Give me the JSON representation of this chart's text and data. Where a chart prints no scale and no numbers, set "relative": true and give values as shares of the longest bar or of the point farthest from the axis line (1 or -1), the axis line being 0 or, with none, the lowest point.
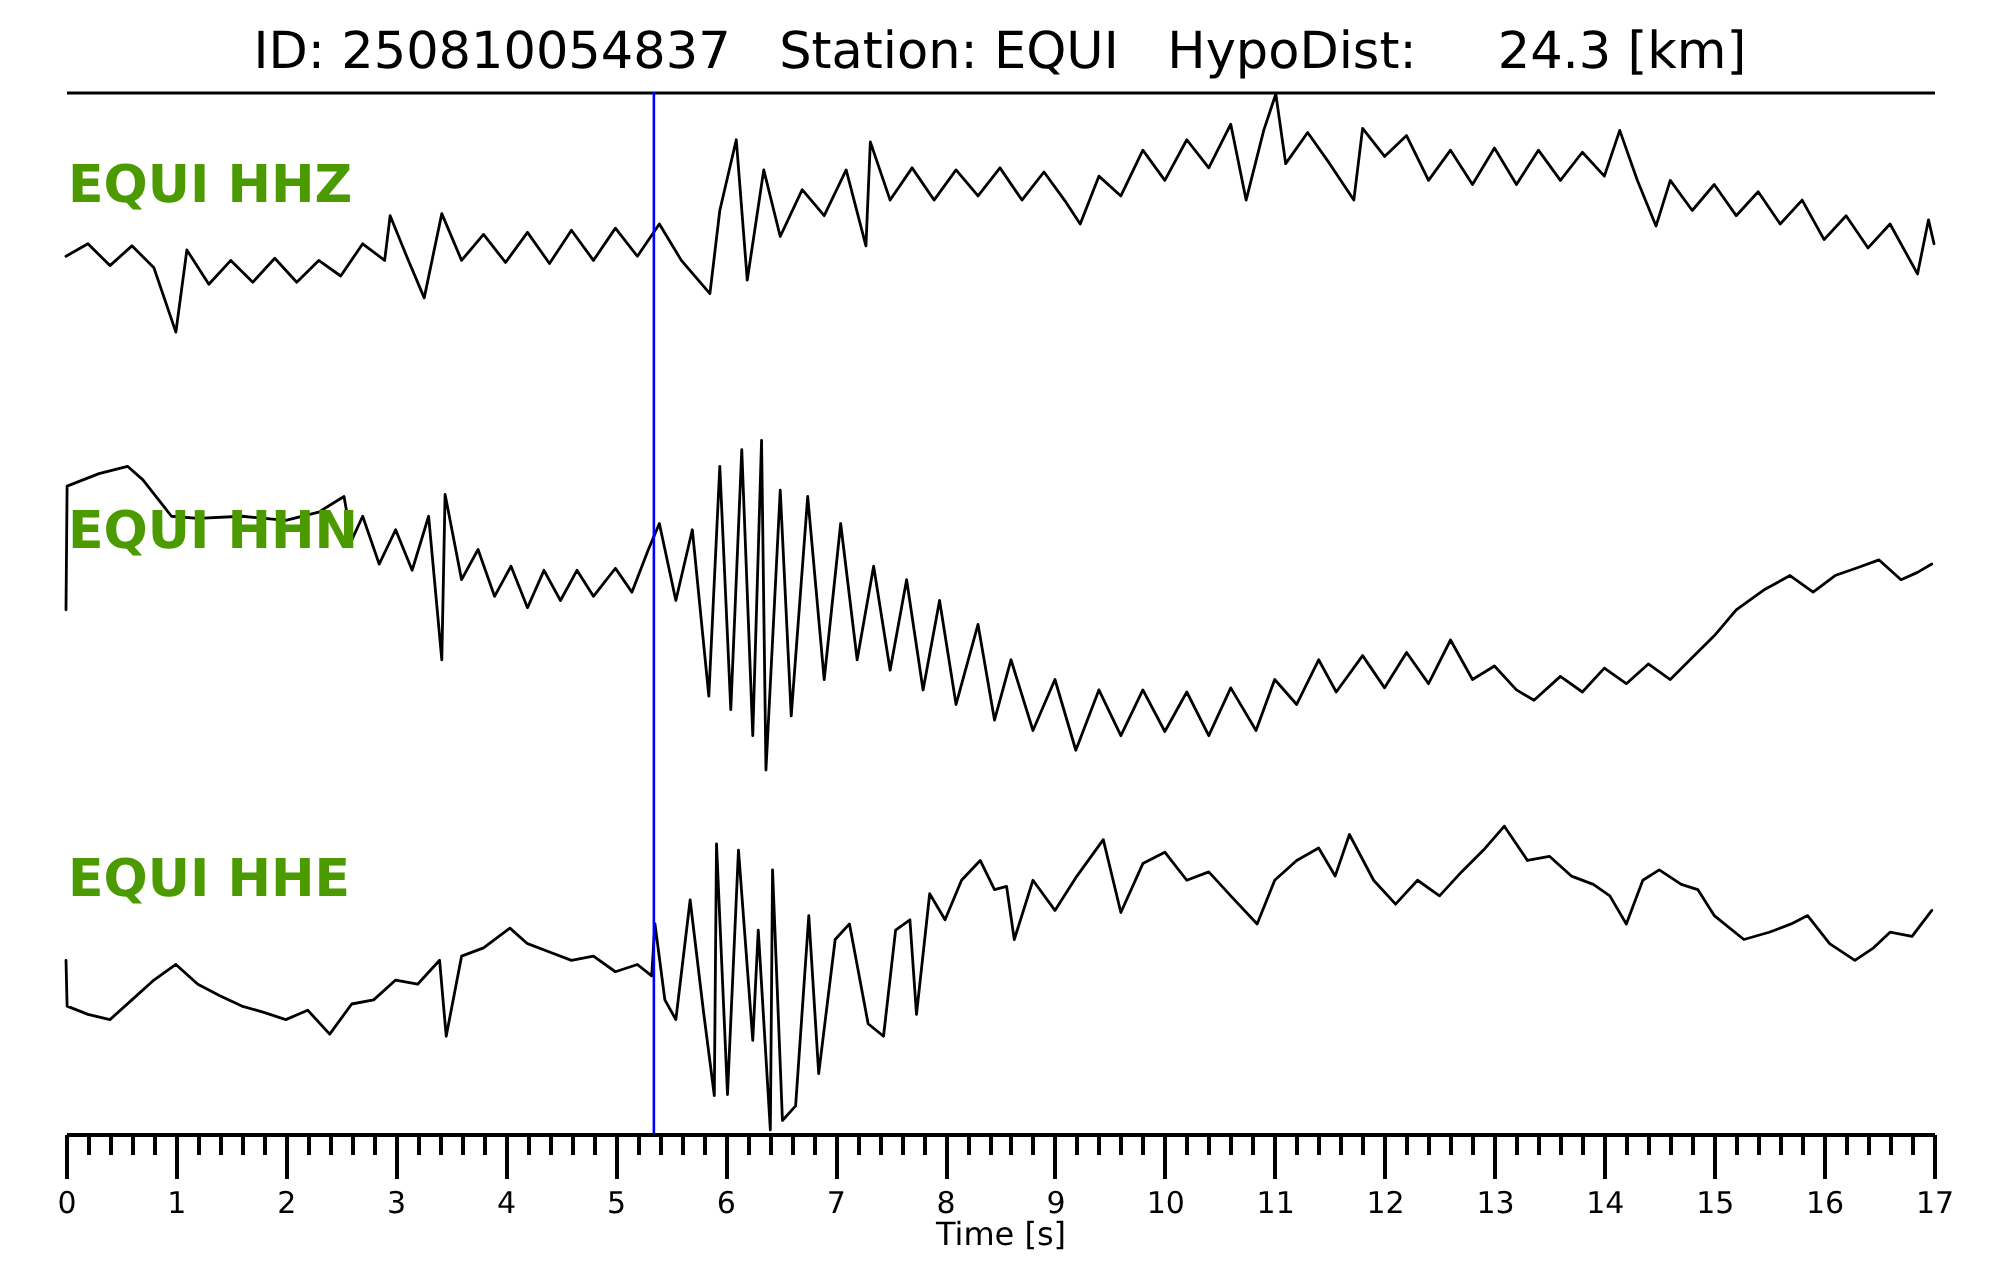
{
  "chart_data": {
    "type": "line",
    "relative": true,
    "title": "ID: 250810054837   Station: EQUI   HypoDist:     24.3 [km]",
    "xlabel": "Time [s]",
    "xlim": [
      0,
      17
    ],
    "xticks": [
      0,
      {
        "value": 0.2,
        "label": null
      },
      {
        "value": 0.4,
        "label": null
      },
      {
        "value": 0.6,
        "label": null
      },
      {
        "value": 0.8,
        "label": null
      },
      1,
      {
        "value": 1.2,
        "label": null
      },
      {
        "value": 1.4,
        "label": null
      },
      {
        "value": 1.6,
        "label": null
      },
      {
        "value": 1.8,
        "label": null
      },
      2,
      {
        "value": 2.2,
        "label": null
      },
      {
        "value": 2.4,
        "label": null
      },
      {
        "value": 2.6,
        "label": null
      },
      {
        "value": 2.8,
        "label": null
      },
      3,
      {
        "value": 3.2,
        "label": null
      },
      {
        "value": 3.4,
        "label": null
      },
      {
        "value": 3.6,
        "label": null
      },
      {
        "value": 3.8,
        "label": null
      },
      4,
      {
        "value": 4.2,
        "label": null
      },
      {
        "value": 4.4,
        "label": null
      },
      {
        "value": 4.6,
        "label": null
      },
      {
        "value": 4.8,
        "label": null
      },
      5,
      {
        "value": 5.2,
        "label": null
      },
      {
        "value": 5.4,
        "label": null
      },
      {
        "value": 5.6,
        "label": null
      },
      {
        "value": 5.8,
        "label": null
      },
      6,
      {
        "value": 6.2,
        "label": null
      },
      {
        "value": 6.4,
        "label": null
      },
      {
        "value": 6.6,
        "label": null
      },
      {
        "value": 6.8,
        "label": null
      },
      7,
      {
        "value": 7.2,
        "label": null
      },
      {
        "value": 7.4,
        "label": null
      },
      {
        "value": 7.6,
        "label": null
      },
      {
        "value": 7.8,
        "label": null
      },
      8,
      {
        "value": 8.2,
        "label": null
      },
      {
        "value": 8.4,
        "label": null
      },
      {
        "value": 8.6,
        "label": null
      },
      {
        "value": 8.8,
        "label": null
      },
      9,
      {
        "value": 9.2,
        "label": null
      },
      {
        "value": 9.4,
        "label": null
      },
      {
        "value": 9.6,
        "label": null
      },
      {
        "value": 9.8,
        "label": null
      },
      10,
      {
        "value": 10.2,
        "label": null
      },
      {
        "value": 10.4,
        "label": null
      },
      {
        "value": 10.6,
        "label": null
      },
      {
        "value": 10.8,
        "label": null
      },
      11,
      {
        "value": 11.2,
        "label": null
      },
      {
        "value": 11.4,
        "label": null
      },
      {
        "value": 11.6,
        "label": null
      },
      {
        "value": 11.8,
        "label": null
      },
      12,
      {
        "value": 12.2,
        "label": null
      },
      {
        "value": 12.4,
        "label": null
      },
      {
        "value": 12.6,
        "label": null
      },
      {
        "value": 12.8,
        "label": null
      },
      13,
      {
        "value": 13.2,
        "label": null
      },
      {
        "value": 13.4,
        "label": null
      },
      {
        "value": 13.6,
        "label": null
      },
      {
        "value": 13.8,
        "label": null
      },
      14,
      {
        "value": 14.2,
        "label": null
      },
      {
        "value": 14.4,
        "label": null
      },
      {
        "value": 14.6,
        "label": null
      },
      {
        "value": 14.8,
        "label": null
      },
      15,
      {
        "value": 15.2,
        "label": null
      },
      {
        "value": 15.4,
        "label": null
      },
      {
        "value": 15.6,
        "label": null
      },
      {
        "value": 15.8,
        "label": null
      },
      16,
      {
        "value": 16.2,
        "label": null
      },
      {
        "value": 16.4,
        "label": null
      },
      {
        "value": 16.6,
        "label": null
      },
      {
        "value": 16.8,
        "label": null
      },
      17
    ],
    "series": [
      {
        "name": "EQUI HHZ",
        "color": "#000000",
        "x": [
          0,
          0.2,
          0.4,
          0.6,
          0.8,
          1.0,
          1.1,
          1.3,
          1.5,
          1.7,
          1.9,
          2.1,
          2.3,
          2.5,
          2.7,
          2.9,
          2.95,
          3.1,
          3.26,
          3.42,
          3.6,
          3.8,
          4.0,
          4.2,
          4.4,
          4.6,
          4.8,
          5.0,
          5.2,
          5.4,
          5.6,
          5.86,
          5.95,
          6.1,
          6.2,
          6.35,
          6.5,
          6.7,
          6.9,
          7.1,
          7.28,
          7.32,
          7.5,
          7.7,
          7.9,
          8.1,
          8.3,
          8.5,
          8.7,
          8.9,
          9.1,
          9.23,
          9.4,
          9.6,
          9.8,
          10.0,
          10.2,
          10.4,
          10.6,
          10.74,
          10.9,
          11.01,
          11.1,
          11.3,
          11.5,
          11.72,
          11.8,
          12.0,
          12.2,
          12.4,
          12.6,
          12.8,
          13.0,
          13.2,
          13.4,
          13.6,
          13.8,
          14.0,
          14.14,
          14.3,
          14.47,
          14.6,
          14.8,
          15.0,
          15.2,
          15.4,
          15.6,
          15.8,
          16.0,
          16.2,
          16.4,
          16.6,
          16.85,
          16.95,
          17.0
        ],
        "values": [
          0.844,
          0.856,
          0.835,
          0.854,
          0.833,
          0.771,
          0.85,
          0.817,
          0.84,
          0.819,
          0.842,
          0.819,
          0.84,
          0.825,
          0.856,
          0.84,
          0.883,
          0.844,
          0.804,
          0.885,
          0.84,
          0.865,
          0.838,
          0.867,
          0.837,
          0.869,
          0.84,
          0.871,
          0.844,
          0.875,
          0.84,
          0.808,
          0.888,
          0.956,
          0.821,
          0.927,
          0.863,
          0.908,
          0.883,
          0.927,
          0.854,
          0.954,
          0.898,
          0.929,
          0.898,
          0.927,
          0.902,
          0.929,
          0.898,
          0.925,
          0.896,
          0.875,
          0.921,
          0.902,
          0.946,
          0.917,
          0.956,
          0.929,
          0.971,
          0.898,
          0.965,
          1,
          0.933,
          0.963,
          0.933,
          0.898,
          0.967,
          0.94,
          0.96,
          0.917,
          0.946,
          0.913,
          0.948,
          0.913,
          0.946,
          0.917,
          0.944,
          0.921,
          0.965,
          0.917,
          0.873,
          0.917,
          0.888,
          0.913,
          0.883,
          0.906,
          0.875,
          0.898,
          0.86,
          0.883,
          0.852,
          0.875,
          0.827,
          0.879,
          0.856
        ]
      },
      {
        "name": "EQUI HHN",
        "color": "#000000",
        "x": [
          0,
          0.01,
          0.3,
          0.56,
          0.7,
          0.96,
          1.2,
          1.6,
          2.0,
          2.3,
          2.53,
          2.6,
          2.7,
          2.85,
          3.0,
          3.15,
          3.3,
          3.42,
          3.45,
          3.6,
          3.75,
          3.9,
          4.05,
          4.2,
          4.35,
          4.5,
          4.65,
          4.8,
          5.0,
          5.15,
          5.3,
          5.4,
          5.55,
          5.7,
          5.85,
          5.95,
          6.05,
          6.15,
          6.25,
          6.33,
          6.37,
          6.5,
          6.6,
          6.75,
          6.9,
          7.05,
          7.2,
          7.35,
          7.5,
          7.65,
          7.8,
          7.95,
          8.1,
          8.3,
          8.45,
          8.6,
          8.8,
          9.0,
          9.19,
          9.4,
          9.6,
          9.8,
          10.0,
          10.2,
          10.4,
          10.6,
          10.83,
          11.0,
          11.2,
          11.4,
          11.56,
          11.8,
          12.0,
          12.2,
          12.4,
          12.6,
          12.8,
          13.0,
          13.2,
          13.36,
          13.6,
          13.8,
          14.0,
          14.2,
          14.4,
          14.6,
          14.78,
          15.0,
          15.2,
          15.45,
          15.69,
          15.9,
          16.1,
          16.29,
          16.5,
          16.7,
          16.85,
          16.98
        ],
        "values": [
          0.504,
          0.623,
          0.635,
          0.642,
          0.629,
          0.594,
          0.592,
          0.594,
          0.59,
          0.598,
          0.613,
          0.571,
          0.594,
          0.548,
          0.581,
          0.542,
          0.594,
          0.456,
          0.615,
          0.533,
          0.562,
          0.517,
          0.546,
          0.506,
          0.542,
          0.513,
          0.542,
          0.517,
          0.544,
          0.521,
          0.562,
          0.587,
          0.513,
          0.581,
          0.421,
          0.642,
          0.408,
          0.658,
          0.383,
          0.667,
          0.35,
          0.619,
          0.402,
          0.613,
          0.437,
          0.587,
          0.456,
          0.546,
          0.446,
          0.533,
          0.427,
          0.513,
          0.413,
          0.49,
          0.398,
          0.456,
          0.388,
          0.437,
          0.369,
          0.427,
          0.383,
          0.427,
          0.387,
          0.425,
          0.383,
          0.429,
          0.388,
          0.437,
          0.413,
          0.456,
          0.425,
          0.46,
          0.429,
          0.463,
          0.433,
          0.475,
          0.437,
          0.45,
          0.427,
          0.417,
          0.44,
          0.425,
          0.448,
          0.433,
          0.452,
          0.437,
          0.456,
          0.479,
          0.504,
          0.523,
          0.537,
          0.521,
          0.537,
          0.544,
          0.552,
          0.533,
          0.54,
          0.548
        ]
      },
      {
        "name": "EQUI HHE",
        "color": "#000000",
        "x": [
          0,
          0.01,
          0.2,
          0.4,
          0.6,
          0.8,
          1.0,
          1.2,
          1.4,
          1.6,
          1.8,
          2.0,
          2.2,
          2.4,
          2.6,
          2.8,
          3.0,
          3.2,
          3.4,
          3.46,
          3.6,
          3.8,
          4.04,
          4.2,
          4.4,
          4.6,
          4.8,
          5.0,
          5.2,
          5.33,
          5.36,
          5.45,
          5.55,
          5.68,
          5.8,
          5.9,
          5.92,
          6.02,
          6.12,
          6.25,
          6.3,
          6.41,
          6.43,
          6.52,
          6.64,
          6.76,
          6.85,
          7.0,
          7.13,
          7.3,
          7.44,
          7.55,
          7.68,
          7.74,
          7.86,
          8.0,
          8.15,
          8.32,
          8.45,
          8.56,
          8.63,
          8.8,
          9.0,
          9.2,
          9.44,
          9.6,
          9.8,
          10.0,
          10.2,
          10.4,
          10.6,
          10.84,
          11.0,
          11.2,
          11.4,
          11.55,
          11.68,
          11.9,
          12.1,
          12.3,
          12.5,
          12.7,
          12.9,
          13.09,
          13.3,
          13.5,
          13.7,
          13.9,
          14.05,
          14.2,
          14.35,
          14.5,
          14.7,
          14.85,
          15.0,
          15.27,
          15.5,
          15.7,
          15.85,
          16.05,
          16.28,
          16.45,
          16.6,
          16.8,
          16.98
        ],
        "values": [
          0.167,
          0.123,
          0.115,
          0.11,
          0.129,
          0.148,
          0.163,
          0.144,
          0.133,
          0.123,
          0.117,
          0.11,
          0.119,
          0.096,
          0.125,
          0.129,
          0.148,
          0.144,
          0.167,
          0.094,
          0.171,
          0.179,
          0.198,
          0.183,
          0.175,
          0.167,
          0.171,
          0.156,
          0.163,
          0.152,
          0.202,
          0.129,
          0.11,
          0.225,
          0.119,
          0.037,
          0.279,
          0.038,
          0.273,
          0.09,
          0.196,
          0.004,
          0.254,
          0.013,
          0.027,
          0.21,
          0.058,
          0.187,
          0.202,
          0.106,
          0.094,
          0.196,
          0.206,
          0.115,
          0.231,
          0.206,
          0.244,
          0.263,
          0.235,
          0.238,
          0.187,
          0.244,
          0.215,
          0.248,
          0.283,
          0.213,
          0.26,
          0.271,
          0.244,
          0.252,
          0.229,
          0.202,
          0.244,
          0.263,
          0.275,
          0.248,
          0.288,
          0.244,
          0.221,
          0.244,
          0.229,
          0.252,
          0.273,
          0.296,
          0.263,
          0.267,
          0.248,
          0.24,
          0.229,
          0.202,
          0.244,
          0.254,
          0.24,
          0.235,
          0.21,
          0.187,
          0.194,
          0.202,
          0.21,
          0.183,
          0.167,
          0.179,
          0.194,
          0.19,
          0.215
        ]
      }
    ],
    "ref_lines": [
      {
        "axis": "x",
        "value": 5.35,
        "color": "#0000ff"
      }
    ]
  }
}
